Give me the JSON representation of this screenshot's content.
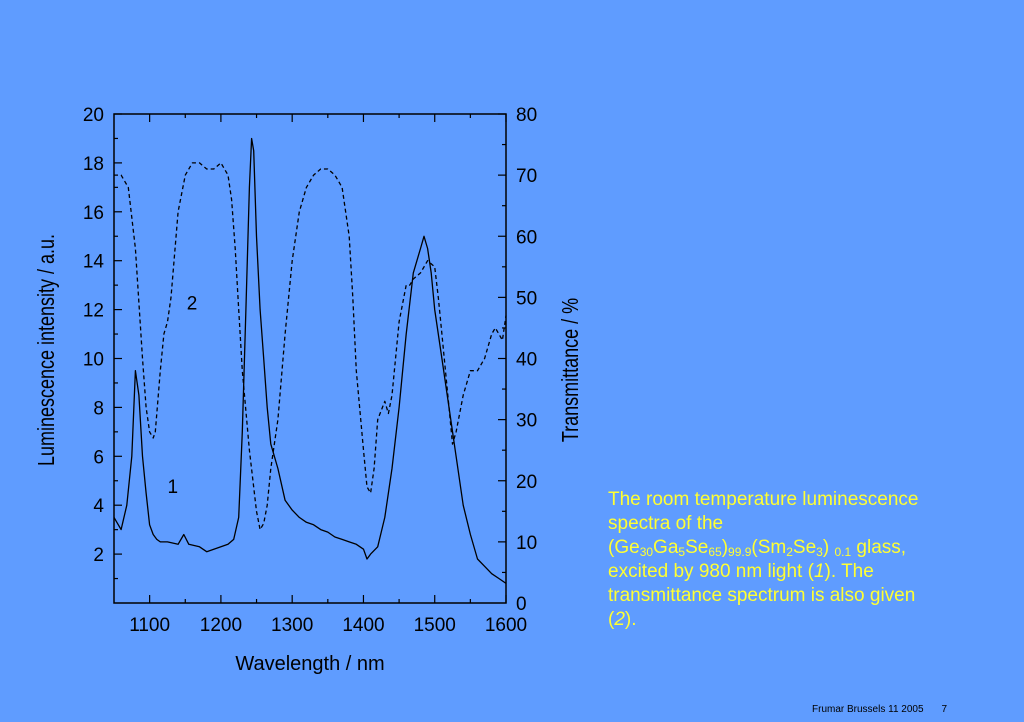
{
  "chart_data": {
    "type": "line",
    "xlabel": "Wavelength / nm",
    "ylabel_left": "Luminescence intensity / a.u.",
    "ylabel_right": "Transmittance / %",
    "xlim": [
      1050,
      1600
    ],
    "ylim_left": [
      0,
      20
    ],
    "ylim_right": [
      0,
      80
    ],
    "x_ticks": [
      "1100",
      "1200",
      "1300",
      "1400",
      "1500",
      "1600"
    ],
    "y_left_ticks": [
      "2",
      "4",
      "6",
      "8",
      "10",
      "12",
      "14",
      "16",
      "18",
      "20"
    ],
    "y_right_ticks": [
      "0",
      "10",
      "20",
      "30",
      "40",
      "50",
      "60",
      "70",
      "80"
    ],
    "series": [
      {
        "name": "1",
        "axis": "left",
        "style": "solid",
        "x": [
          1050,
          1060,
          1068,
          1075,
          1080,
          1085,
          1090,
          1095,
          1100,
          1105,
          1110,
          1115,
          1125,
          1140,
          1148,
          1155,
          1170,
          1180,
          1190,
          1200,
          1210,
          1218,
          1225,
          1230,
          1235,
          1240,
          1243,
          1246,
          1250,
          1255,
          1260,
          1265,
          1270,
          1280,
          1290,
          1300,
          1310,
          1320,
          1330,
          1340,
          1350,
          1360,
          1370,
          1380,
          1390,
          1400,
          1405,
          1410,
          1420,
          1430,
          1440,
          1450,
          1460,
          1470,
          1480,
          1485,
          1490,
          1495,
          1500,
          1510,
          1520,
          1530,
          1540,
          1550,
          1560,
          1570,
          1580,
          1590,
          1600
        ],
        "y": [
          3.5,
          3.0,
          4.0,
          6.0,
          9.5,
          8.5,
          6.0,
          4.5,
          3.2,
          2.8,
          2.6,
          2.5,
          2.5,
          2.4,
          2.8,
          2.4,
          2.3,
          2.1,
          2.2,
          2.3,
          2.4,
          2.6,
          3.5,
          7.0,
          12.0,
          17.0,
          19.0,
          18.5,
          15.0,
          12.0,
          10.0,
          8.0,
          6.5,
          5.5,
          4.2,
          3.8,
          3.5,
          3.3,
          3.2,
          3.0,
          2.9,
          2.7,
          2.6,
          2.5,
          2.4,
          2.2,
          1.8,
          2.0,
          2.3,
          3.5,
          5.5,
          8.0,
          11.0,
          13.5,
          14.5,
          15.0,
          14.5,
          13.5,
          12.0,
          10.0,
          8.0,
          6.0,
          4.0,
          2.8,
          1.8,
          1.5,
          1.2,
          1.0,
          0.8
        ]
      },
      {
        "name": "2",
        "axis": "right",
        "style": "dashed",
        "x": [
          1050,
          1060,
          1070,
          1080,
          1090,
          1095,
          1100,
          1105,
          1108,
          1115,
          1120,
          1125,
          1130,
          1140,
          1150,
          1160,
          1170,
          1180,
          1190,
          1200,
          1210,
          1215,
          1220,
          1225,
          1230,
          1240,
          1250,
          1255,
          1260,
          1265,
          1270,
          1280,
          1290,
          1300,
          1310,
          1320,
          1330,
          1340,
          1350,
          1360,
          1365,
          1370,
          1380,
          1385,
          1390,
          1400,
          1405,
          1410,
          1415,
          1420,
          1430,
          1435,
          1440,
          1450,
          1460,
          1465,
          1470,
          1480,
          1490,
          1500,
          1505,
          1510,
          1520,
          1525,
          1530,
          1540,
          1550,
          1560,
          1570,
          1580,
          1585,
          1590,
          1595,
          1600
        ],
        "y": [
          70,
          70,
          68,
          58,
          40,
          32,
          28,
          27,
          28,
          38,
          44,
          46,
          50,
          64,
          70,
          72,
          72,
          71,
          71,
          72,
          70,
          66,
          58,
          48,
          38,
          25,
          15,
          12,
          13,
          16,
          22,
          30,
          44,
          56,
          64,
          68,
          70,
          71,
          71,
          70,
          69,
          68,
          60,
          50,
          38,
          25,
          19,
          18,
          22,
          30,
          33,
          31,
          34,
          46,
          52,
          52,
          53,
          54,
          56,
          55,
          50,
          44,
          32,
          26,
          28,
          34,
          38,
          38,
          40,
          44,
          45,
          44,
          43,
          47
        ]
      }
    ],
    "annotations": [
      {
        "text": "1",
        "x": 1125,
        "y": 4.5,
        "axis": "left"
      },
      {
        "text": "2",
        "x": 1152,
        "y": 12,
        "axis": "left"
      }
    ],
    "grid": false
  },
  "caption": {
    "line1": "The room temperature luminescence",
    "line2": "spectra of the",
    "p_open": "(Ge",
    "s1": "30",
    "t2": "Ga",
    "s2": "5",
    "t3": "Se",
    "s3": "65",
    "t4": ")",
    "s4": "99.9",
    "t5": "(Sm",
    "s5": "2",
    "t6": "Se",
    "s6": "3",
    "t7": ") ",
    "s7": "0.1",
    "t8": " glass,",
    "line4_pre": "excited by 980 nm light (",
    "line4_num": "1",
    "line4_post": "). The",
    "line5": "transmittance spectrum is also given",
    "line6_pre": "(",
    "line6_num": "2",
    "line6_post": ")."
  },
  "footer": {
    "left": "Frumar Brussels 11 2005",
    "page": "7"
  },
  "colors": {
    "background": "#5f9cff",
    "caption_text": "#ffff33",
    "axis": "#000000"
  }
}
